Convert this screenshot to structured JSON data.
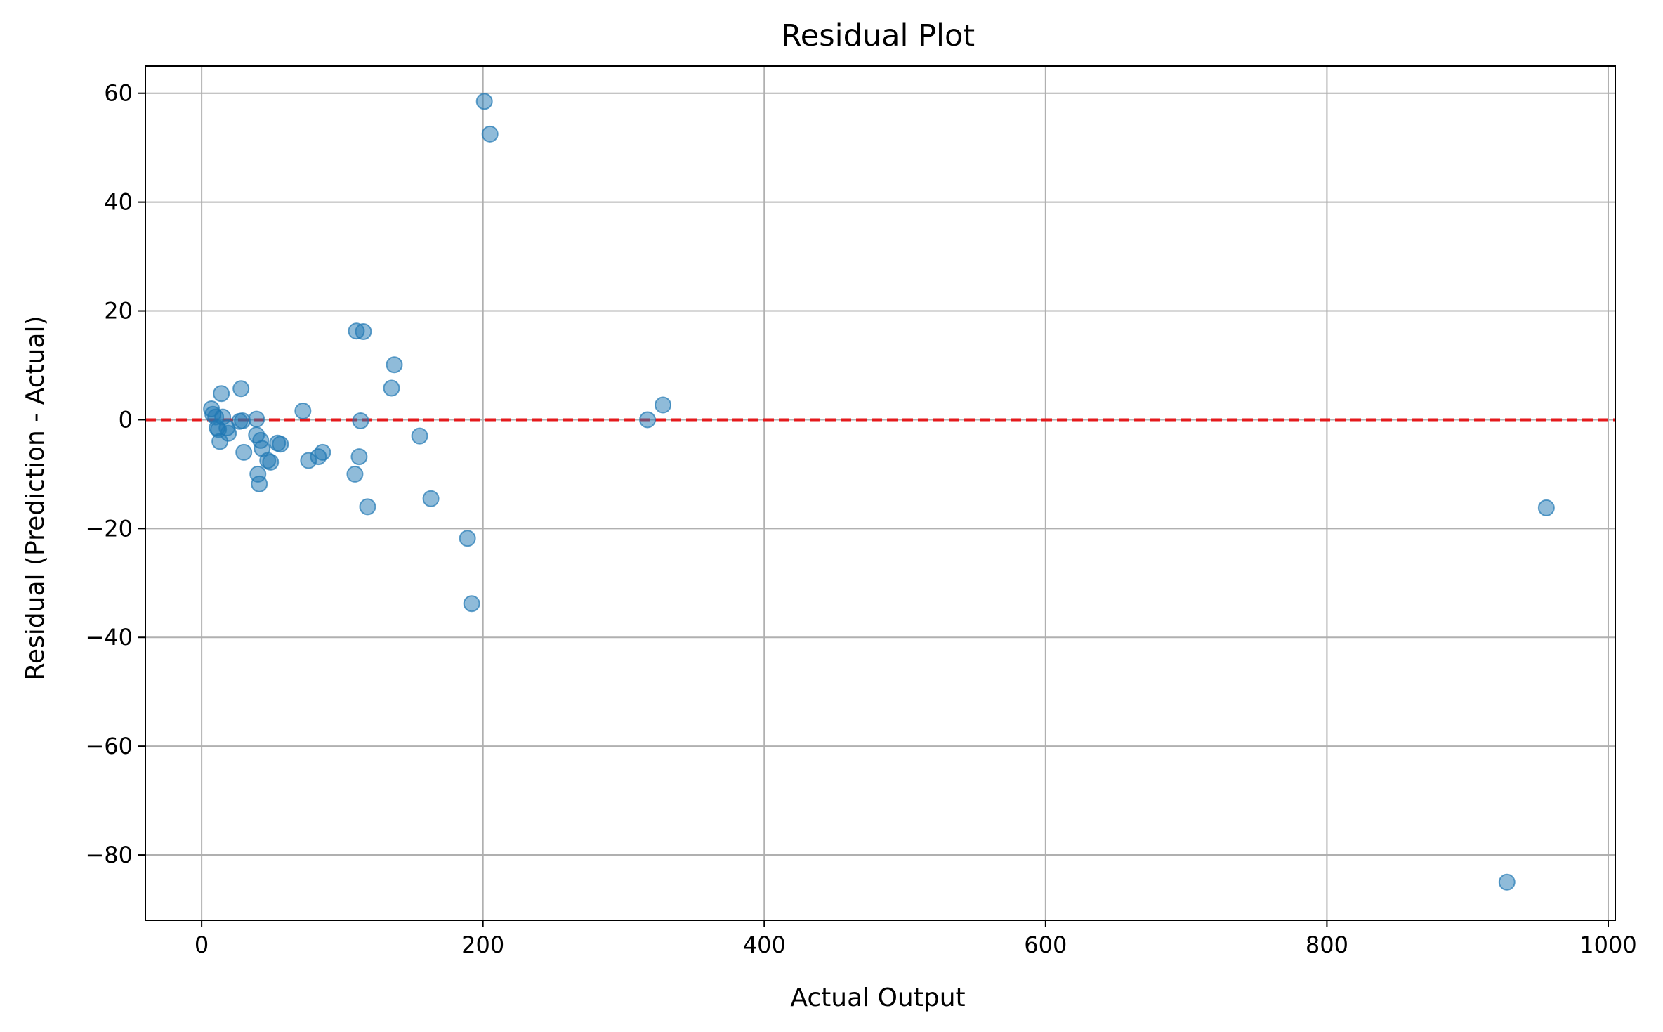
{
  "chart_data": {
    "type": "scatter",
    "title": "Residual Plot",
    "xlabel": "Actual Output",
    "ylabel": "Residual (Prediction - Actual)",
    "xlim": [
      -40,
      1005
    ],
    "ylim": [
      -92,
      65
    ],
    "xticks": [
      0,
      200,
      400,
      600,
      800,
      1000
    ],
    "xtick_labels": [
      "0",
      "200",
      "400",
      "600",
      "800",
      "1000"
    ],
    "yticks": [
      60,
      40,
      20,
      0,
      -20,
      -40,
      -60,
      -80
    ],
    "ytick_labels": [
      "60",
      "40",
      "20",
      "0",
      "−20",
      "−40",
      "−60",
      "−80"
    ],
    "grid": true,
    "marker_color": "#1f77b4",
    "marker_alpha": 0.5,
    "reference_line": {
      "y": 0,
      "color": "#e41a1c",
      "style": "dashed"
    },
    "points": [
      [
        7,
        2.0
      ],
      [
        8,
        1.0
      ],
      [
        10,
        0.5
      ],
      [
        11,
        -1.5
      ],
      [
        12,
        -1.8
      ],
      [
        13,
        -4.0
      ],
      [
        14,
        4.8
      ],
      [
        15,
        0.5
      ],
      [
        18,
        -1.5
      ],
      [
        19,
        -2.5
      ],
      [
        28,
        5.7
      ],
      [
        27,
        -0.3
      ],
      [
        29,
        -0.2
      ],
      [
        30,
        -6.0
      ],
      [
        39,
        0.1
      ],
      [
        39,
        -2.8
      ],
      [
        40,
        -10.0
      ],
      [
        41,
        -11.8
      ],
      [
        42,
        -3.8
      ],
      [
        43,
        -5.3
      ],
      [
        47,
        -7.5
      ],
      [
        49,
        -7.8
      ],
      [
        54,
        -4.3
      ],
      [
        56,
        -4.5
      ],
      [
        72,
        1.6
      ],
      [
        76,
        -7.5
      ],
      [
        83,
        -6.8
      ],
      [
        86,
        -6.0
      ],
      [
        110,
        16.3
      ],
      [
        115,
        16.2
      ],
      [
        109,
        -10.0
      ],
      [
        112,
        -6.8
      ],
      [
        113,
        -0.2
      ],
      [
        118,
        -16.0
      ],
      [
        135,
        5.8
      ],
      [
        137,
        10.1
      ],
      [
        155,
        -3.0
      ],
      [
        163,
        -14.5
      ],
      [
        189,
        -21.8
      ],
      [
        192,
        -33.8
      ],
      [
        201,
        58.5
      ],
      [
        205,
        52.5
      ],
      [
        317,
        0.0
      ],
      [
        328,
        2.7
      ],
      [
        928,
        -85.0
      ],
      [
        956,
        -16.2
      ]
    ]
  }
}
